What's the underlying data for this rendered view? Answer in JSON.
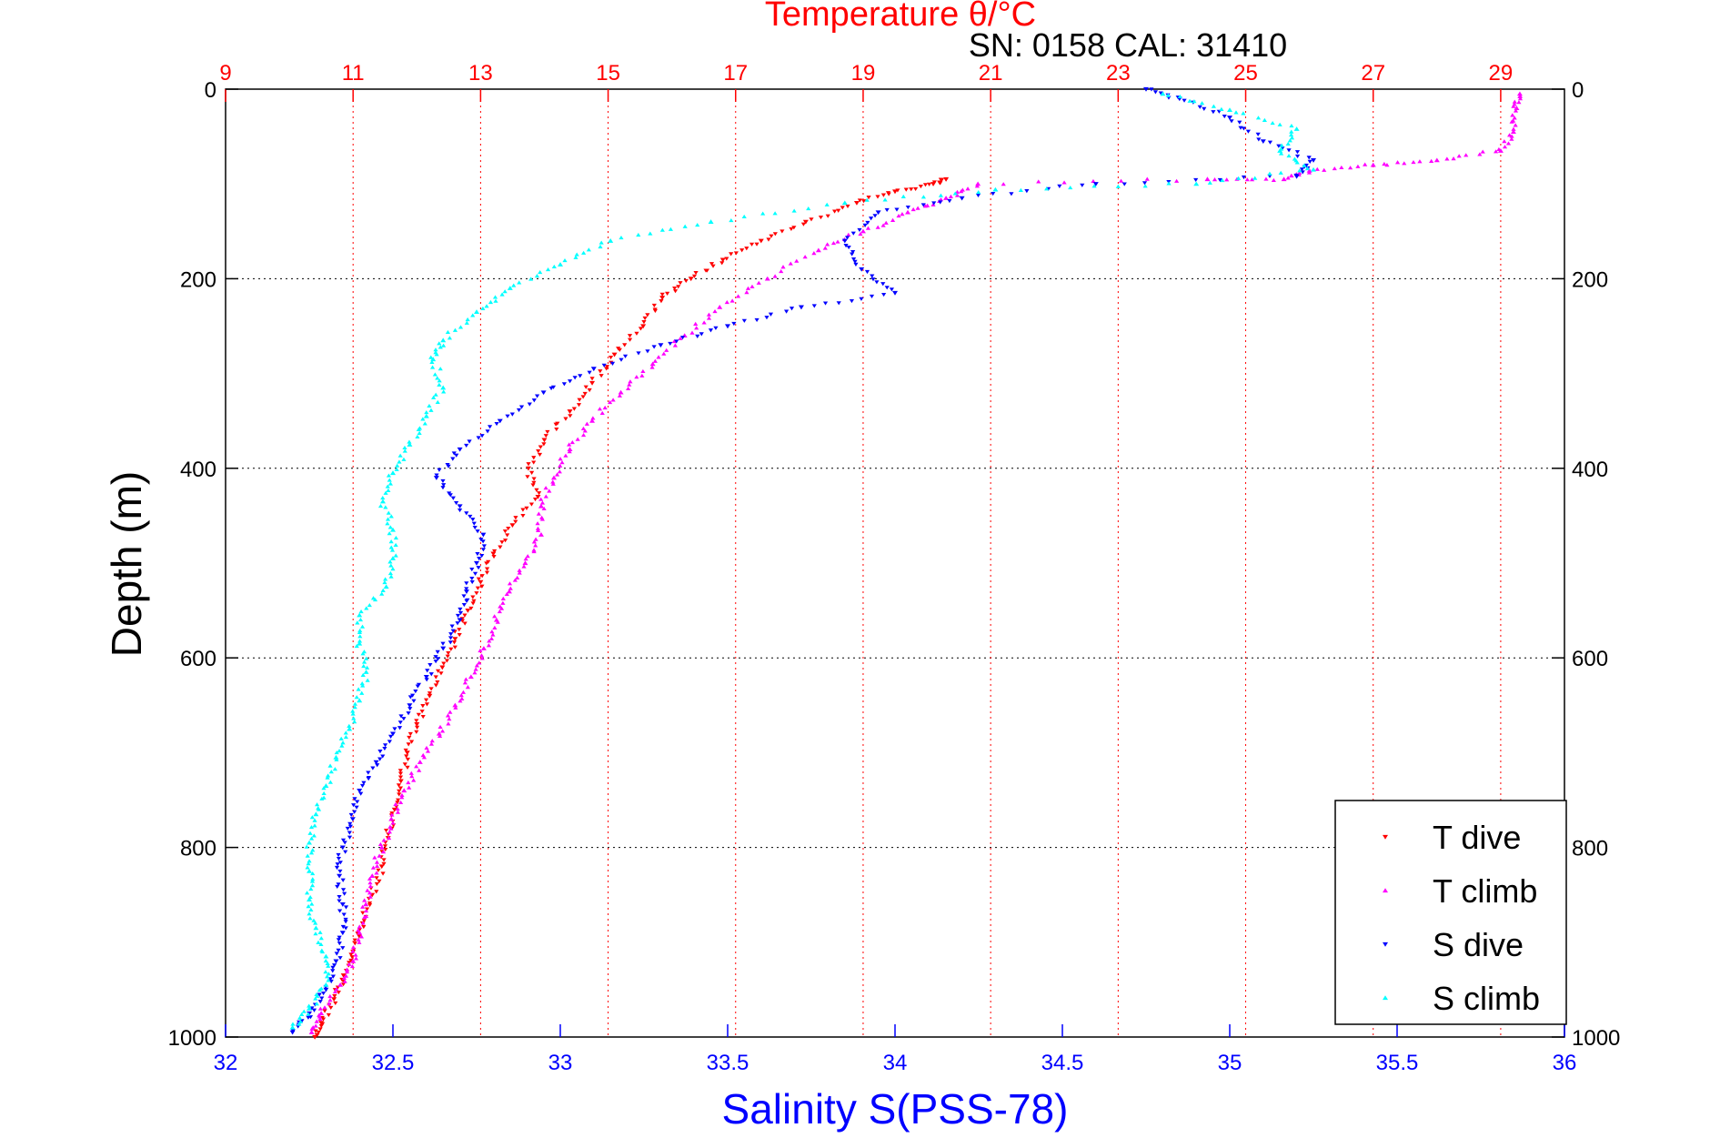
{
  "chart_data": {
    "type": "scatter",
    "title": "Temperature θ/°C",
    "subtitle": "SN: 0158  CAL: 31410",
    "ylabel": "Depth (m)",
    "xlabel_bottom": "Salinity S(PSS-78)",
    "xlabel_top": "Temperature θ/°C",
    "ylim": [
      1000,
      0
    ],
    "y_reversed": true,
    "xlim_bottom": [
      32,
      36
    ],
    "xlim_top": [
      9,
      30
    ],
    "yticks": [
      0,
      200,
      400,
      600,
      800,
      1000
    ],
    "xticks_bottom": [
      32,
      32.5,
      33,
      33.5,
      34,
      34.5,
      35,
      35.5,
      36
    ],
    "xticks_top": [
      9,
      11,
      13,
      15,
      17,
      19,
      21,
      23,
      25,
      27,
      29
    ],
    "ytick_labels": [
      "0",
      "200",
      "400",
      "600",
      "800",
      "1000"
    ],
    "xtick_labels_bottom": [
      "32",
      "32.5",
      "33",
      "33.5",
      "34",
      "34.5",
      "35",
      "35.5",
      "36"
    ],
    "xtick_labels_top": [
      "9",
      "11",
      "13",
      "15",
      "17",
      "19",
      "21",
      "23",
      "25",
      "27",
      "29"
    ],
    "grid": {
      "horizontal": true,
      "vertical_top_axis": true
    },
    "legend_position": "bottom-right",
    "colors": {
      "title": "#ff0000",
      "top_axis": "#ff0000",
      "bottom_axis": "#0000ff",
      "left_axis": "#000000",
      "hgrid": "#000000",
      "vgrid": "#ff0000"
    },
    "series": [
      {
        "name": "T dive",
        "axis": "top",
        "color": "#ff0000",
        "marker": "triangle-down",
        "points": [
          [
            10.4,
            1000
          ],
          [
            10.5,
            985
          ],
          [
            10.7,
            960
          ],
          [
            10.85,
            935
          ],
          [
            11.0,
            910
          ],
          [
            11.15,
            880
          ],
          [
            11.3,
            850
          ],
          [
            11.45,
            820
          ],
          [
            11.55,
            790
          ],
          [
            11.65,
            760
          ],
          [
            11.75,
            730
          ],
          [
            11.85,
            700
          ],
          [
            12.0,
            670
          ],
          [
            12.2,
            640
          ],
          [
            12.4,
            610
          ],
          [
            12.6,
            580
          ],
          [
            12.8,
            550
          ],
          [
            13.0,
            520
          ],
          [
            13.2,
            490
          ],
          [
            13.5,
            460
          ],
          [
            13.9,
            430
          ],
          [
            13.75,
            400
          ],
          [
            14.0,
            370
          ],
          [
            14.4,
            340
          ],
          [
            14.75,
            310
          ],
          [
            15.1,
            280
          ],
          [
            15.55,
            250
          ],
          [
            15.85,
            220
          ],
          [
            16.3,
            200
          ],
          [
            16.8,
            180
          ],
          [
            17.4,
            160
          ],
          [
            18.1,
            140
          ],
          [
            18.9,
            120
          ],
          [
            19.5,
            108
          ],
          [
            20.1,
            100
          ],
          [
            20.3,
            95
          ]
        ]
      },
      {
        "name": "T climb",
        "axis": "top",
        "color": "#ff00ff",
        "marker": "triangle-up",
        "points": [
          [
            10.35,
            995
          ],
          [
            10.5,
            975
          ],
          [
            10.8,
            945
          ],
          [
            11.0,
            920
          ],
          [
            11.1,
            890
          ],
          [
            11.2,
            860
          ],
          [
            11.3,
            830
          ],
          [
            11.45,
            800
          ],
          [
            11.6,
            770
          ],
          [
            11.8,
            740
          ],
          [
            12.05,
            710
          ],
          [
            12.35,
            680
          ],
          [
            12.6,
            650
          ],
          [
            12.85,
            620
          ],
          [
            13.05,
            590
          ],
          [
            13.25,
            560
          ],
          [
            13.45,
            530
          ],
          [
            13.7,
            500
          ],
          [
            13.95,
            470
          ],
          [
            13.95,
            440
          ],
          [
            14.15,
            410
          ],
          [
            14.4,
            380
          ],
          [
            14.75,
            350
          ],
          [
            15.2,
            320
          ],
          [
            15.7,
            290
          ],
          [
            16.2,
            260
          ],
          [
            16.75,
            230
          ],
          [
            17.5,
            200
          ],
          [
            18.3,
            170
          ],
          [
            19.0,
            150
          ],
          [
            19.7,
            130
          ],
          [
            20.3,
            115
          ],
          [
            20.8,
            100
          ],
          [
            24.4,
            95
          ],
          [
            25.6,
            95
          ],
          [
            26.0,
            86
          ],
          [
            27.0,
            80
          ],
          [
            28.0,
            75
          ],
          [
            29.0,
            65
          ],
          [
            29.2,
            45
          ],
          [
            29.25,
            20
          ],
          [
            29.3,
            5
          ]
        ]
      },
      {
        "name": "S dive",
        "axis": "bottom",
        "color": "#0000ff",
        "marker": "triangle-down",
        "points": [
          [
            32.2,
            995
          ],
          [
            32.25,
            975
          ],
          [
            32.3,
            950
          ],
          [
            32.33,
            920
          ],
          [
            32.35,
            890
          ],
          [
            32.35,
            860
          ],
          [
            32.34,
            830
          ],
          [
            32.35,
            800
          ],
          [
            32.38,
            770
          ],
          [
            32.4,
            740
          ],
          [
            32.45,
            710
          ],
          [
            32.5,
            680
          ],
          [
            32.55,
            650
          ],
          [
            32.6,
            620
          ],
          [
            32.65,
            590
          ],
          [
            32.7,
            560
          ],
          [
            32.72,
            530
          ],
          [
            32.75,
            500
          ],
          [
            32.77,
            470
          ],
          [
            32.7,
            440
          ],
          [
            32.63,
            410
          ],
          [
            32.7,
            380
          ],
          [
            32.82,
            350
          ],
          [
            32.95,
            320
          ],
          [
            33.1,
            295
          ],
          [
            33.3,
            270
          ],
          [
            33.5,
            250
          ],
          [
            33.72,
            230
          ],
          [
            34.0,
            215
          ],
          [
            33.9,
            190
          ],
          [
            33.85,
            160
          ],
          [
            33.95,
            130
          ],
          [
            34.2,
            115
          ],
          [
            34.6,
            100
          ],
          [
            35.2,
            92
          ],
          [
            35.25,
            75
          ],
          [
            35.1,
            55
          ],
          [
            35.0,
            30
          ],
          [
            34.85,
            10
          ],
          [
            34.75,
            0
          ]
        ]
      },
      {
        "name": "S climb",
        "axis": "bottom",
        "color": "#00ffff",
        "marker": "triangle-up",
        "points": [
          [
            32.2,
            990
          ],
          [
            32.25,
            970
          ],
          [
            32.3,
            945
          ],
          [
            32.3,
            915
          ],
          [
            32.27,
            885
          ],
          [
            32.25,
            855
          ],
          [
            32.25,
            825
          ],
          [
            32.25,
            795
          ],
          [
            32.27,
            765
          ],
          [
            32.3,
            735
          ],
          [
            32.33,
            705
          ],
          [
            32.37,
            675
          ],
          [
            32.4,
            645
          ],
          [
            32.42,
            615
          ],
          [
            32.4,
            585
          ],
          [
            32.4,
            555
          ],
          [
            32.48,
            525
          ],
          [
            32.5,
            495
          ],
          [
            32.5,
            465
          ],
          [
            32.47,
            435
          ],
          [
            32.5,
            405
          ],
          [
            32.55,
            375
          ],
          [
            32.6,
            345
          ],
          [
            32.65,
            315
          ],
          [
            32.62,
            285
          ],
          [
            32.65,
            265
          ],
          [
            32.75,
            235
          ],
          [
            32.85,
            210
          ],
          [
            33.0,
            185
          ],
          [
            33.15,
            160
          ],
          [
            33.45,
            140
          ],
          [
            33.85,
            120
          ],
          [
            34.3,
            106
          ],
          [
            34.9,
            100
          ],
          [
            35.25,
            85
          ],
          [
            35.15,
            65
          ],
          [
            35.2,
            42
          ],
          [
            35.0,
            22
          ],
          [
            34.8,
            5
          ]
        ]
      }
    ]
  }
}
